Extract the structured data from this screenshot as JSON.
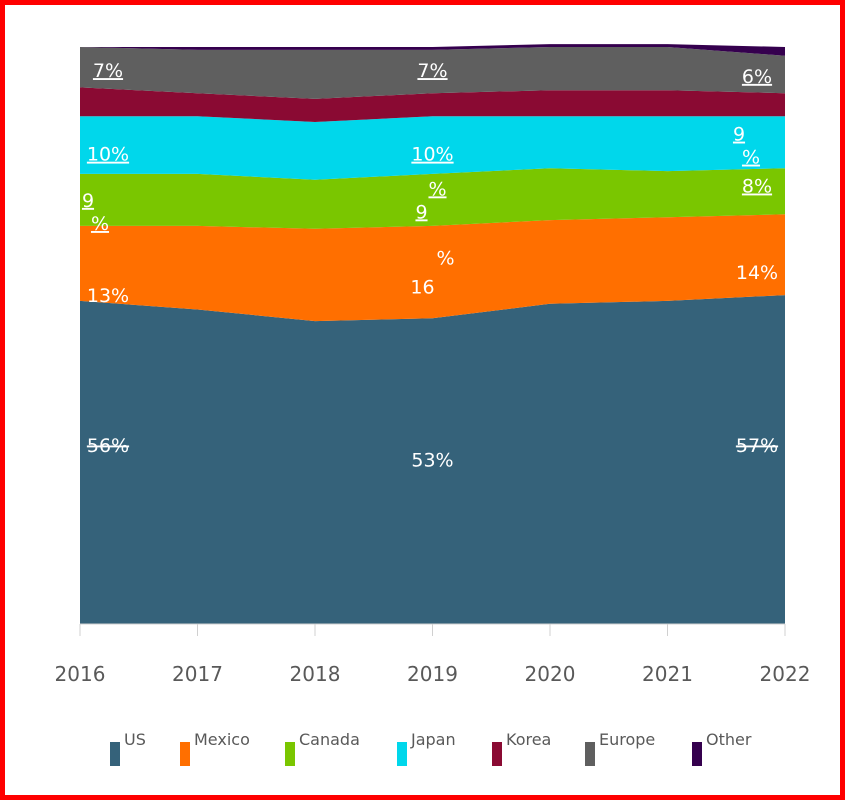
{
  "chart_data": {
    "type": "area",
    "stacked": true,
    "normalized_percent": true,
    "x": [
      "2016",
      "2017",
      "2018",
      "2019",
      "2020",
      "2021",
      "2022"
    ],
    "ylim": [
      0,
      100
    ],
    "grid": false,
    "legend_position": "bottom",
    "series": [
      {
        "name": "US",
        "color": "#35627A",
        "values": [
          56,
          54.5,
          52.5,
          53,
          55.5,
          56,
          57
        ]
      },
      {
        "name": "Mexico",
        "color": "#FF6F00",
        "values": [
          13,
          14.5,
          16,
          16,
          14.5,
          14.5,
          14
        ]
      },
      {
        "name": "Canada",
        "color": "#7AC600",
        "values": [
          9,
          9,
          8.5,
          9,
          9,
          8,
          8
        ]
      },
      {
        "name": "Japan",
        "color": "#00D7EB",
        "values": [
          10,
          10,
          10,
          10,
          9,
          9.5,
          9
        ]
      },
      {
        "name": "Korea",
        "color": "#8A0A33",
        "values": [
          5,
          4,
          4,
          4,
          4.5,
          4.5,
          4
        ]
      },
      {
        "name": "Europe",
        "color": "#5F5F5F",
        "values": [
          7,
          7.5,
          8.5,
          7.5,
          7.5,
          7.5,
          6.5
        ]
      },
      {
        "name": "Other",
        "color": "#35004E",
        "values": [
          0,
          0.5,
          0.5,
          0.5,
          0.5,
          0.5,
          1.5
        ]
      }
    ],
    "data_labels": [
      {
        "text": "56%",
        "x_index": 0,
        "y": 31,
        "underline": false,
        "strike": true
      },
      {
        "text": "13%",
        "x_index": 0,
        "y": 57,
        "underline": false,
        "strike": false
      },
      {
        "text": "9",
        "x_index": 0,
        "y": 73.5,
        "underline": true,
        "strike": false
      },
      {
        "text": "%",
        "x_index": 0,
        "y": 69.5,
        "underline": true,
        "strike": false
      },
      {
        "text": "10%",
        "x_index": 0,
        "y": 81.5,
        "underline": true,
        "strike": false
      },
      {
        "text": "7%",
        "x_index": 0,
        "y": 96,
        "underline": true,
        "strike": false
      },
      {
        "text": "53%",
        "x_index": 3,
        "y": 28.5,
        "underline": false,
        "strike": false
      },
      {
        "text": "16",
        "x_index": 3,
        "y": 58.5,
        "underline": false,
        "strike": false
      },
      {
        "text": "%",
        "x_index": 3,
        "y": 63.5,
        "underline": false,
        "strike": false
      },
      {
        "text": "9",
        "x_index": 3,
        "y": 71.5,
        "underline": true,
        "strike": false
      },
      {
        "text": "%",
        "x_index": 3,
        "y": 75.5,
        "underline": true,
        "strike": false
      },
      {
        "text": "10%",
        "x_index": 3,
        "y": 81.5,
        "underline": true,
        "strike": false
      },
      {
        "text": "7%",
        "x_index": 3,
        "y": 96,
        "underline": true,
        "strike": false
      },
      {
        "text": "57%",
        "x_index": 6,
        "y": 31,
        "underline": false,
        "strike": true
      },
      {
        "text": "14%",
        "x_index": 6,
        "y": 61,
        "underline": false,
        "strike": false
      },
      {
        "text": "8%",
        "x_index": 6,
        "y": 76,
        "underline": true,
        "strike": false
      },
      {
        "text": "%",
        "x_index": 6,
        "y": 81,
        "underline": true,
        "strike": false
      },
      {
        "text": "9",
        "x_index": 6,
        "y": 85,
        "underline": true,
        "strike": false
      },
      {
        "text": "6%",
        "x_index": 6,
        "y": 95,
        "underline": true,
        "strike": false
      }
    ]
  },
  "legend": {
    "items": [
      {
        "label": "US",
        "color": "#35627A"
      },
      {
        "label": "Mexico",
        "color": "#FF6F00"
      },
      {
        "label": "Canada",
        "color": "#7AC600"
      },
      {
        "label": "Japan",
        "color": "#00D7EB"
      },
      {
        "label": "Korea",
        "color": "#8A0A33"
      },
      {
        "label": "Europe",
        "color": "#5F5F5F"
      },
      {
        "label": "Other",
        "color": "#35004E"
      }
    ]
  }
}
